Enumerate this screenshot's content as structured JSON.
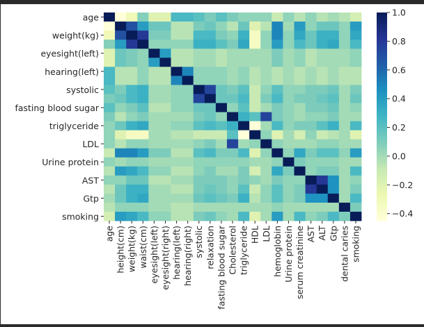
{
  "chart_data": {
    "type": "heatmap",
    "title": "",
    "columns": [
      "age",
      "height(cm)",
      "weight(kg)",
      "waist(cm)",
      "eyesight(left)",
      "eyesight(right)",
      "hearing(left)",
      "hearing(right)",
      "systolic",
      "relaxation",
      "fasting blood sugar",
      "Cholesterol",
      "triglyceride",
      "HDL",
      "LDL",
      "hemoglobin",
      "Urine protein",
      "serum creatinine",
      "AST",
      "ALT",
      "Gtp",
      "dental caries",
      "smoking"
    ],
    "rows": [
      "age",
      "height(cm)",
      "weight(kg)",
      "waist(cm)",
      "eyesight(left)",
      "eyesight(right)",
      "hearing(left)",
      "hearing(right)",
      "systolic",
      "relaxation",
      "fasting blood sugar",
      "Cholesterol",
      "triglyceride",
      "HDL",
      "LDL",
      "hemoglobin",
      "Urine protein",
      "serum creatinine",
      "AST",
      "ALT",
      "Gtp",
      "dental caries",
      "smoking"
    ],
    "row_tick_labels": [
      "age",
      "weight(kg)",
      "hearing(left)",
      "systolic",
      "fasting blood sugar",
      "triglyceride",
      "LDL",
      "Urine protein",
      "AST",
      "Gtp",
      "smoking",
      "eyesight(left)"
    ],
    "values": [
      [
        1.0,
        -0.45,
        -0.3,
        0.08,
        -0.2,
        -0.2,
        0.25,
        0.25,
        0.2,
        0.1,
        0.2,
        0.1,
        0.05,
        0.05,
        0.05,
        -0.1,
        0.05,
        -0.05,
        0.05,
        -0.05,
        0.0,
        -0.05,
        -0.15
      ],
      [
        -0.45,
        1.0,
        0.7,
        0.4,
        0.15,
        0.15,
        -0.05,
        -0.05,
        0.1,
        0.15,
        0.05,
        -0.05,
        0.15,
        -0.2,
        -0.05,
        0.5,
        0.0,
        0.4,
        0.05,
        0.15,
        0.15,
        0.05,
        0.4
      ],
      [
        -0.3,
        0.7,
        1.0,
        0.8,
        0.1,
        0.1,
        -0.05,
        -0.05,
        0.25,
        0.25,
        0.1,
        0.05,
        0.3,
        -0.35,
        0.05,
        0.5,
        0.05,
        0.35,
        0.15,
        0.3,
        0.3,
        0.05,
        0.35
      ],
      [
        0.08,
        0.4,
        0.8,
        1.0,
        0.05,
        0.05,
        0.05,
        0.05,
        0.3,
        0.3,
        0.2,
        0.1,
        0.35,
        -0.35,
        0.05,
        0.4,
        0.05,
        0.25,
        0.15,
        0.3,
        0.35,
        0.05,
        0.25
      ],
      [
        -0.2,
        0.15,
        0.1,
        0.05,
        1.0,
        0.4,
        -0.05,
        -0.05,
        0.0,
        0.0,
        -0.05,
        0.0,
        0.0,
        0.0,
        0.0,
        0.1,
        0.0,
        0.05,
        -0.05,
        0.0,
        0.0,
        0.0,
        0.05
      ],
      [
        -0.2,
        0.15,
        0.1,
        0.05,
        0.4,
        1.0,
        -0.05,
        -0.05,
        0.0,
        0.0,
        -0.05,
        0.0,
        0.0,
        0.0,
        0.0,
        0.1,
        0.0,
        0.05,
        -0.05,
        0.0,
        0.0,
        0.0,
        0.05
      ],
      [
        0.25,
        -0.05,
        -0.05,
        0.05,
        -0.05,
        -0.05,
        1.0,
        0.5,
        0.05,
        0.05,
        0.05,
        0.0,
        0.05,
        -0.05,
        0.0,
        -0.05,
        0.0,
        -0.05,
        0.0,
        -0.05,
        0.0,
        -0.05,
        -0.05
      ],
      [
        0.25,
        -0.05,
        -0.05,
        0.05,
        -0.05,
        -0.05,
        0.5,
        1.0,
        0.05,
        0.05,
        0.05,
        0.0,
        0.05,
        -0.05,
        0.0,
        -0.05,
        0.0,
        -0.05,
        0.0,
        -0.05,
        0.0,
        -0.05,
        -0.05
      ],
      [
        0.2,
        0.1,
        0.25,
        0.3,
        0.0,
        0.0,
        0.05,
        0.05,
        1.0,
        0.75,
        0.15,
        0.1,
        0.2,
        -0.1,
        0.05,
        0.2,
        0.05,
        0.05,
        0.1,
        0.1,
        0.15,
        0.0,
        0.1
      ],
      [
        0.1,
        0.15,
        0.25,
        0.3,
        0.0,
        0.0,
        0.05,
        0.05,
        0.75,
        1.0,
        0.15,
        0.15,
        0.25,
        -0.1,
        0.1,
        0.25,
        0.05,
        0.1,
        0.1,
        0.15,
        0.2,
        0.0,
        0.15
      ],
      [
        0.2,
        0.05,
        0.1,
        0.2,
        -0.05,
        -0.05,
        0.05,
        0.05,
        0.15,
        0.15,
        1.0,
        0.05,
        0.2,
        -0.1,
        0.0,
        0.1,
        0.05,
        0.0,
        0.1,
        0.1,
        0.15,
        0.0,
        0.05
      ],
      [
        0.1,
        -0.05,
        0.05,
        0.1,
        0.0,
        0.0,
        0.0,
        0.0,
        0.1,
        0.15,
        0.05,
        1.0,
        0.3,
        0.2,
        0.75,
        0.1,
        0.05,
        0.0,
        0.05,
        0.05,
        0.1,
        0.0,
        0.0
      ],
      [
        0.05,
        0.15,
        0.3,
        0.35,
        0.0,
        0.0,
        0.05,
        0.05,
        0.2,
        0.25,
        0.2,
        0.3,
        1.0,
        -0.45,
        0.0,
        0.25,
        0.05,
        0.1,
        0.1,
        0.2,
        0.3,
        0.0,
        0.25
      ],
      [
        0.05,
        -0.2,
        -0.35,
        -0.35,
        0.0,
        0.0,
        -0.05,
        -0.05,
        -0.1,
        -0.1,
        -0.1,
        0.2,
        -0.45,
        1.0,
        0.05,
        -0.2,
        0.0,
        -0.15,
        0.05,
        -0.1,
        -0.05,
        0.0,
        -0.2
      ],
      [
        0.05,
        -0.05,
        0.05,
        0.05,
        0.0,
        0.0,
        0.0,
        0.0,
        0.05,
        0.1,
        0.0,
        0.75,
        0.0,
        0.05,
        1.0,
        0.05,
        0.0,
        0.0,
        0.0,
        0.05,
        0.05,
        0.0,
        0.0
      ],
      [
        -0.1,
        0.5,
        0.5,
        0.4,
        0.1,
        0.1,
        -0.05,
        -0.05,
        0.2,
        0.25,
        0.1,
        0.1,
        0.25,
        -0.2,
        0.05,
        1.0,
        0.05,
        0.35,
        0.1,
        0.2,
        0.2,
        0.05,
        0.4
      ],
      [
        0.05,
        0.0,
        0.05,
        0.05,
        0.0,
        0.0,
        0.0,
        0.0,
        0.05,
        0.05,
        0.05,
        0.05,
        0.05,
        0.0,
        0.0,
        0.05,
        1.0,
        0.1,
        0.05,
        0.05,
        0.05,
        0.0,
        0.0
      ],
      [
        -0.05,
        0.4,
        0.35,
        0.25,
        0.05,
        0.05,
        -0.05,
        -0.05,
        0.05,
        0.1,
        0.0,
        0.0,
        0.1,
        -0.15,
        0.0,
        0.35,
        0.1,
        1.0,
        0.05,
        0.1,
        0.1,
        0.0,
        0.25
      ],
      [
        0.05,
        0.05,
        0.15,
        0.15,
        -0.05,
        -0.05,
        0.0,
        0.0,
        0.1,
        0.1,
        0.1,
        0.05,
        0.1,
        0.05,
        0.0,
        0.1,
        0.05,
        0.05,
        1.0,
        0.8,
        0.45,
        0.0,
        0.05
      ],
      [
        -0.05,
        0.15,
        0.3,
        0.3,
        0.0,
        0.0,
        -0.05,
        -0.05,
        0.1,
        0.15,
        0.1,
        0.05,
        0.2,
        -0.1,
        0.05,
        0.2,
        0.05,
        0.1,
        0.8,
        1.0,
        0.45,
        0.0,
        0.1
      ],
      [
        0.0,
        0.15,
        0.3,
        0.35,
        0.0,
        0.0,
        0.0,
        0.0,
        0.15,
        0.2,
        0.15,
        0.1,
        0.3,
        -0.05,
        0.05,
        0.2,
        0.05,
        0.1,
        0.45,
        0.45,
        1.0,
        0.0,
        0.25
      ],
      [
        -0.05,
        0.05,
        0.05,
        0.05,
        0.0,
        0.0,
        -0.05,
        -0.05,
        0.0,
        0.0,
        0.0,
        0.0,
        0.0,
        0.0,
        0.0,
        0.05,
        0.0,
        0.0,
        0.0,
        0.0,
        0.0,
        1.0,
        0.1
      ],
      [
        -0.15,
        0.4,
        0.35,
        0.25,
        0.05,
        0.05,
        -0.05,
        -0.05,
        0.1,
        0.15,
        0.05,
        0.0,
        0.25,
        -0.2,
        0.0,
        0.4,
        0.0,
        0.25,
        0.05,
        0.1,
        0.25,
        0.1,
        1.0
      ]
    ],
    "colorbar": {
      "colormap": "YlGnBu",
      "vmin": -0.45,
      "vmax": 1.0,
      "ticks": [
        -0.4,
        -0.2,
        0.0,
        0.2,
        0.4,
        0.6,
        0.8,
        1.0
      ],
      "tick_labels": [
        "−0.4",
        "−0.2",
        "0.0",
        "0.2",
        "0.4",
        "0.6",
        "0.8",
        "1.0"
      ]
    },
    "grid": false,
    "legend": "right"
  }
}
